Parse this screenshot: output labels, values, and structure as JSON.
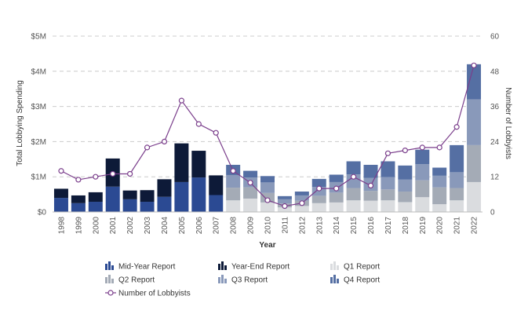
{
  "chart_data": {
    "type": "bar",
    "stacked": true,
    "title": "",
    "xlabel": "Year",
    "ylabel": "Total Lobbying Spending",
    "y2label": "Number of Lobbyists",
    "categories": [
      "1998",
      "1999",
      "2000",
      "2001",
      "2002",
      "2003",
      "2004",
      "2005",
      "2006",
      "2007",
      "2008",
      "2009",
      "2010",
      "2011",
      "2012",
      "2013",
      "2014",
      "2015",
      "2016",
      "2017",
      "2018",
      "2019",
      "2020",
      "2021",
      "2022"
    ],
    "ylim": [
      0,
      5000000
    ],
    "y_ticks": [
      0,
      1000000,
      2000000,
      3000000,
      4000000,
      5000000
    ],
    "y_tick_labels": [
      "$0",
      "$1M",
      "$2M",
      "$3M",
      "$4M",
      "$5M"
    ],
    "y2lim": [
      0,
      60
    ],
    "y2_ticks": [
      0,
      12,
      24,
      36,
      48,
      60
    ],
    "y2_tick_labels": [
      "0",
      "12",
      "24",
      "36",
      "48",
      "60"
    ],
    "grid": true,
    "legend_position": "bottom",
    "series": [
      {
        "name": "Mid-Year Report",
        "color": "#2b4a93",
        "axis": "left",
        "values": [
          400000,
          250000,
          290000,
          720000,
          360000,
          290000,
          430000,
          850000,
          980000,
          480000,
          0,
          0,
          0,
          0,
          0,
          0,
          0,
          0,
          0,
          0,
          0,
          0,
          0,
          0,
          0
        ]
      },
      {
        "name": "Year-End Report",
        "color": "#0d1a38",
        "axis": "left",
        "values": [
          260000,
          220000,
          270000,
          800000,
          250000,
          330000,
          500000,
          1100000,
          760000,
          560000,
          0,
          0,
          0,
          0,
          0,
          0,
          0,
          0,
          0,
          0,
          0,
          0,
          0,
          0,
          0
        ]
      },
      {
        "name": "Q1 Report",
        "color": "#dadcdf",
        "axis": "left",
        "values": [
          0,
          0,
          0,
          0,
          0,
          0,
          0,
          0,
          0,
          0,
          330000,
          380000,
          270000,
          130000,
          170000,
          250000,
          270000,
          330000,
          320000,
          330000,
          280000,
          420000,
          220000,
          330000,
          850000
        ]
      },
      {
        "name": "Q2 Report",
        "color": "#a4abb6",
        "axis": "left",
        "values": [
          0,
          0,
          0,
          0,
          0,
          0,
          0,
          0,
          0,
          0,
          360000,
          320000,
          270000,
          110000,
          150000,
          210000,
          280000,
          350000,
          280000,
          310000,
          300000,
          480000,
          480000,
          350000,
          1050000
        ]
      },
      {
        "name": "Q3 Report",
        "color": "#8999ba",
        "axis": "left",
        "values": [
          0,
          0,
          0,
          0,
          0,
          0,
          0,
          0,
          0,
          0,
          360000,
          280000,
          300000,
          120000,
          150000,
          250000,
          300000,
          390000,
          370000,
          350000,
          340000,
          460000,
          330000,
          450000,
          1300000
        ]
      },
      {
        "name": "Q4 Report",
        "color": "#556fa3",
        "axis": "left",
        "values": [
          0,
          0,
          0,
          0,
          0,
          0,
          0,
          0,
          0,
          0,
          290000,
          190000,
          180000,
          90000,
          110000,
          230000,
          210000,
          370000,
          370000,
          450000,
          400000,
          410000,
          230000,
          770000,
          1000000
        ]
      },
      {
        "name": "Number of Lobbyists",
        "color": "#7b3f8c",
        "axis": "right",
        "chart": "line",
        "values": [
          14,
          11,
          12,
          13,
          13,
          22,
          24,
          38,
          30,
          27,
          14,
          10,
          4,
          2,
          3,
          8,
          8,
          12,
          9,
          20,
          21,
          22,
          22,
          29,
          50
        ]
      }
    ]
  }
}
